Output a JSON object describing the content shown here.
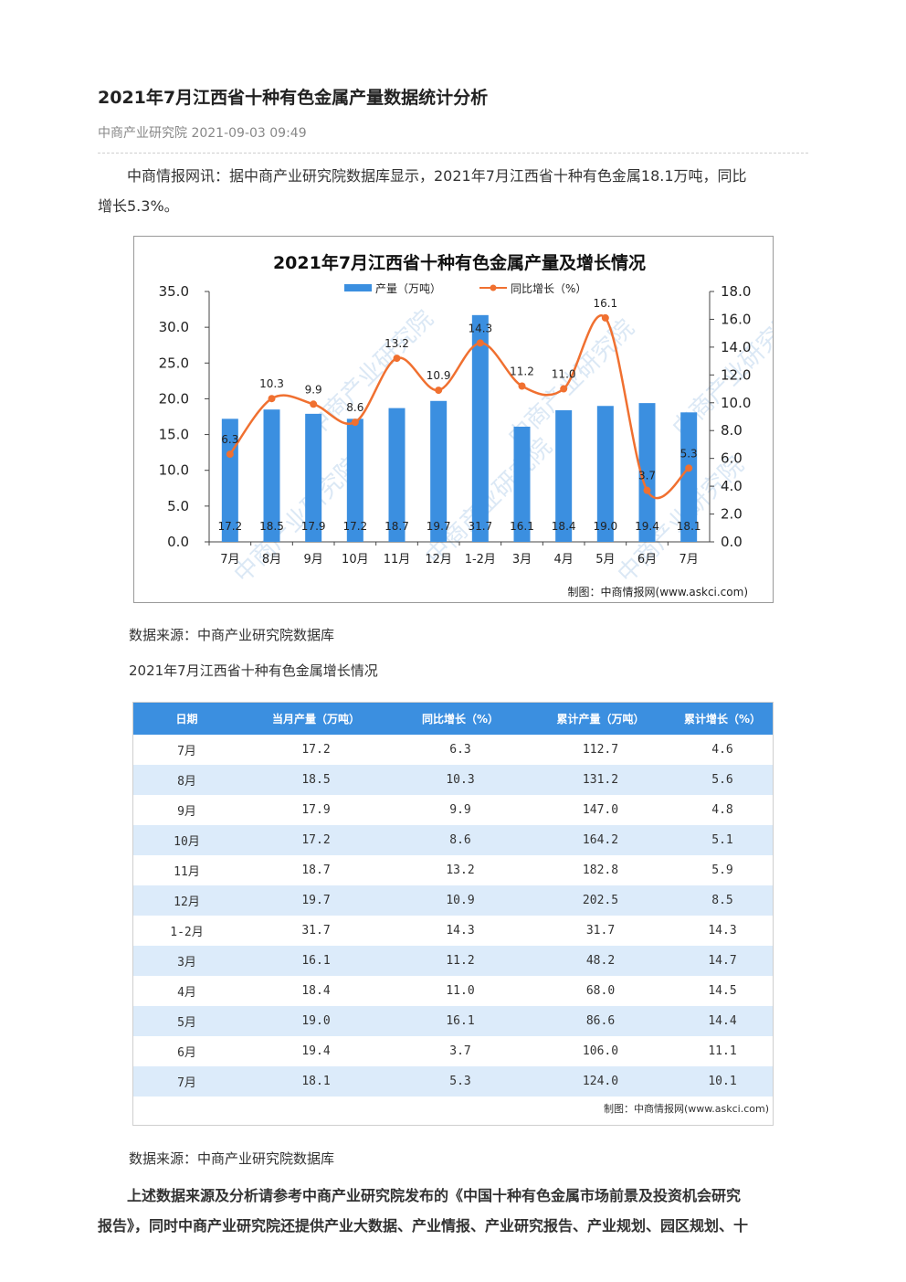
{
  "article": {
    "title": "2021年7月江西省十种有色金属产量数据统计分析",
    "meta": "中商产业研究院 2021-09-03 09:49",
    "intro_line1": "中商情报网讯：据中商产业研究院数据库显示，2021年7月江西省十种有色金属18.1万吨，同比",
    "intro_line2": "增长5.3%。",
    "source1": "数据来源：中商产业研究院数据库",
    "table_caption": "2021年7月江西省十种有色金属增长情况",
    "source2": "数据来源：中商产业研究院数据库",
    "closing_line1": "上述数据来源及分析请参考中商产业研究院发布的《中国十种有色金属市场前景及投资机会研究",
    "closing_line2": "报告》，同时中商产业研究院还提供产业大数据、产业情报、产业研究报告、产业规划、园区规划、十"
  },
  "chart_data": {
    "type": "bar",
    "title": "2021年7月江西省十种有色金属产量及增长情况",
    "categories": [
      "7月",
      "8月",
      "9月",
      "10月",
      "11月",
      "12月",
      "1-2月",
      "3月",
      "4月",
      "5月",
      "6月",
      "7月"
    ],
    "series": [
      {
        "name": "产量（万吨）",
        "type": "bar",
        "axis": "left",
        "color": "#3b8fe0",
        "values": [
          17.2,
          18.5,
          17.9,
          17.2,
          18.7,
          19.7,
          31.7,
          16.1,
          18.4,
          19.0,
          19.4,
          18.1
        ]
      },
      {
        "name": "同比增长（%）",
        "type": "line",
        "axis": "right",
        "color": "#f07030",
        "values": [
          6.3,
          10.3,
          9.9,
          8.6,
          13.2,
          10.9,
          14.3,
          11.2,
          11.0,
          16.1,
          3.7,
          5.3
        ]
      }
    ],
    "left_axis": {
      "ticks": [
        "0.0",
        "5.0",
        "10.0",
        "15.0",
        "20.0",
        "25.0",
        "30.0",
        "35.0"
      ],
      "range": [
        0,
        35
      ]
    },
    "right_axis": {
      "ticks": [
        "0.0",
        "2.0",
        "4.0",
        "6.0",
        "8.0",
        "10.0",
        "12.0",
        "14.0",
        "16.0",
        "18.0"
      ],
      "range": [
        0,
        18
      ]
    },
    "legend_position": "top-center",
    "credit": "制图：中商情报网(www.askci.com)",
    "watermark": "中商产业研究院"
  },
  "table": {
    "headers": [
      "日期",
      "当月产量（万吨）",
      "同比增长（%）",
      "累计产量（万吨）",
      "累计增长（%）"
    ],
    "rows": [
      [
        "7月",
        "17.2",
        "6.3",
        "112.7",
        "4.6"
      ],
      [
        "8月",
        "18.5",
        "10.3",
        "131.2",
        "5.6"
      ],
      [
        "9月",
        "17.9",
        "9.9",
        "147.0",
        "4.8"
      ],
      [
        "10月",
        "17.2",
        "8.6",
        "164.2",
        "5.1"
      ],
      [
        "11月",
        "18.7",
        "13.2",
        "182.8",
        "5.9"
      ],
      [
        "12月",
        "19.7",
        "10.9",
        "202.5",
        "8.5"
      ],
      [
        "1-2月",
        "31.7",
        "14.3",
        "31.7",
        "14.3"
      ],
      [
        "3月",
        "16.1",
        "11.2",
        "48.2",
        "14.7"
      ],
      [
        "4月",
        "18.4",
        "11.0",
        "68.0",
        "14.5"
      ],
      [
        "5月",
        "19.0",
        "16.1",
        "86.6",
        "14.4"
      ],
      [
        "6月",
        "19.4",
        "3.7",
        "106.0",
        "11.1"
      ],
      [
        "7月",
        "18.1",
        "5.3",
        "124.0",
        "10.1"
      ]
    ],
    "credit": "制图：中商情报网(www.askci.com)"
  }
}
